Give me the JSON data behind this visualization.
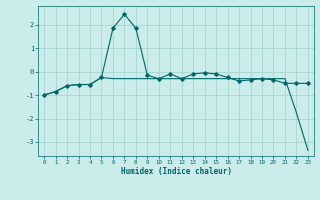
{
  "xlabel": "Humidex (Indice chaleur)",
  "ylabel": "",
  "background_color": "#caecea",
  "grid_color": "#aad4d0",
  "line_color": "#006666",
  "xlim": [
    -0.5,
    23.5
  ],
  "ylim": [
    -3.6,
    2.8
  ],
  "yticks": [
    -3,
    -2,
    -1,
    0,
    1,
    2
  ],
  "xticks": [
    0,
    1,
    2,
    3,
    4,
    5,
    6,
    7,
    8,
    9,
    10,
    11,
    12,
    13,
    14,
    15,
    16,
    17,
    18,
    19,
    20,
    21,
    22,
    23
  ],
  "series1_x": [
    0,
    1,
    2,
    3,
    4,
    5,
    6,
    7,
    8,
    9,
    10,
    11,
    12,
    13,
    14,
    15,
    16,
    17,
    18,
    19,
    20,
    21,
    22,
    23
  ],
  "series1_y": [
    -1.0,
    -0.85,
    -0.6,
    -0.55,
    -0.55,
    -0.25,
    1.85,
    2.45,
    1.85,
    -0.15,
    -0.3,
    -0.1,
    -0.3,
    -0.1,
    -0.05,
    -0.1,
    -0.25,
    -0.4,
    -0.35,
    -0.3,
    -0.35,
    -0.5,
    -0.5,
    -0.5
  ],
  "series2_x": [
    0,
    1,
    2,
    3,
    4,
    5,
    6,
    7,
    8,
    9,
    10,
    11,
    12,
    13,
    14,
    15,
    16,
    17,
    18,
    19,
    20,
    21,
    22,
    23
  ],
  "series2_y": [
    -1.0,
    -0.85,
    -0.6,
    -0.55,
    -0.55,
    -0.25,
    -0.3,
    -0.3,
    -0.3,
    -0.3,
    -0.3,
    -0.3,
    -0.3,
    -0.3,
    -0.3,
    -0.3,
    -0.3,
    -0.3,
    -0.3,
    -0.3,
    -0.3,
    -0.3,
    -1.75,
    -3.35
  ]
}
